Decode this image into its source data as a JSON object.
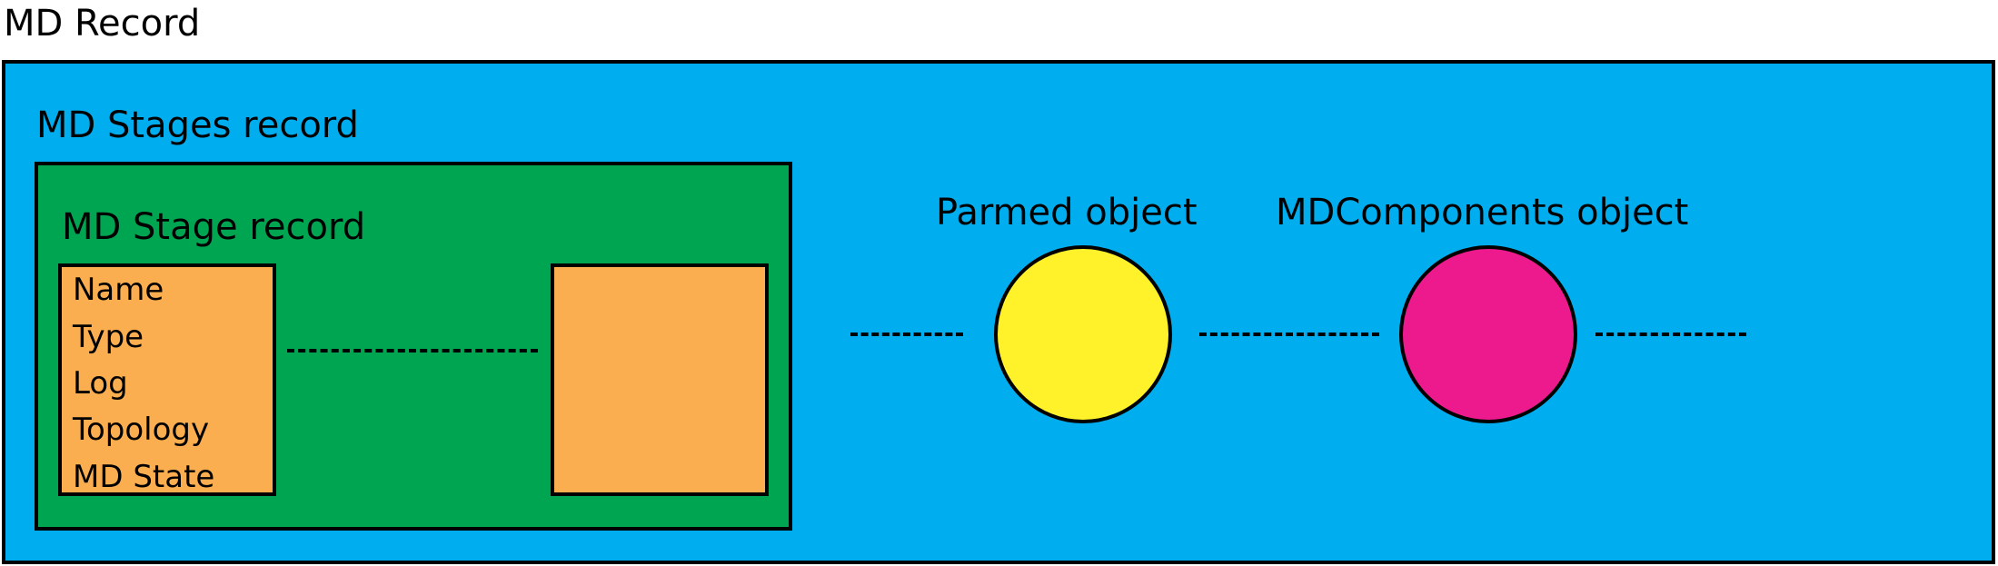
{
  "diagram": {
    "title": "MD Record",
    "stages_record": {
      "label": "MD Stages record",
      "color": "#00AEEF"
    },
    "stage_record": {
      "label": "MD Stage record",
      "color": "#00A551"
    },
    "stage_fields": [
      "Name",
      "Type",
      "Log",
      "Topology",
      "MD State"
    ],
    "stage_box_color": "#FBAE4F",
    "parmed": {
      "label": "Parmed object",
      "color": "#FFF22B"
    },
    "components": {
      "label": "MDComponents object",
      "color": "#EC1A8D"
    }
  }
}
